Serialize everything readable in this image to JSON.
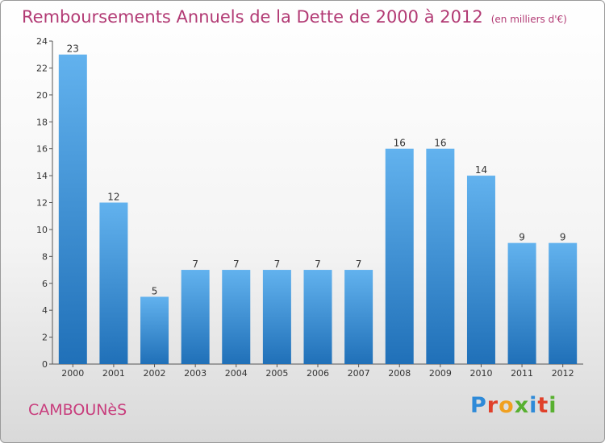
{
  "title": "Remboursements Annuels de la Dette de 2000 à 2012",
  "subtitle": "(en milliers d'€)",
  "commune": "CAMBOUNèS",
  "brand": {
    "letters": [
      "P",
      "r",
      "o",
      "x",
      "i",
      "t",
      "i"
    ],
    "colors": [
      "#2e8ad8",
      "#e0402a",
      "#f0a020",
      "#58b030",
      "#2e8ad8",
      "#e0402a",
      "#58b030"
    ]
  },
  "colors": {
    "bar_top": "#62b2ee",
    "bar_bottom": "#2070b8",
    "title": "#b23a74"
  },
  "chart_data": {
    "type": "bar",
    "title": "Remboursements Annuels de la Dette de 2000 à 2012",
    "subtitle": "(en milliers d'€)",
    "categories": [
      "2000",
      "2001",
      "2002",
      "2003",
      "2004",
      "2005",
      "2006",
      "2007",
      "2008",
      "2009",
      "2010",
      "2011",
      "2012"
    ],
    "values": [
      23,
      12,
      5,
      7,
      7,
      7,
      7,
      7,
      16,
      16,
      14,
      9,
      9
    ],
    "data_labels": [
      "23",
      "12",
      "5",
      "7",
      "7",
      "7",
      "7",
      "7",
      "16",
      "16",
      "14",
      "9",
      "9"
    ],
    "yticks": [
      "0",
      "2",
      "4",
      "6",
      "8",
      "10",
      "12",
      "14",
      "16",
      "18",
      "20",
      "22",
      "24"
    ],
    "ylim": [
      0,
      24
    ],
    "xlabel": "",
    "ylabel": "",
    "grid": false,
    "legend": "none"
  }
}
